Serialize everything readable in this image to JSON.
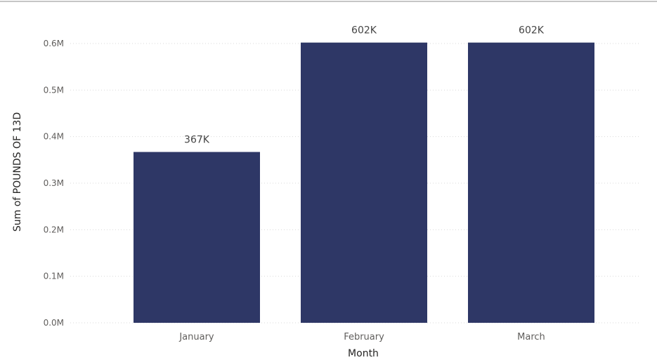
{
  "chart_data": {
    "type": "bar",
    "categories": [
      "January",
      "February",
      "March"
    ],
    "values": [
      367000,
      602000,
      602000
    ],
    "data_labels": [
      "367K",
      "602K",
      "602K"
    ],
    "title": "",
    "xlabel": "Month",
    "ylabel": "Sum of POUNDS OF 13D",
    "ylim": [
      0,
      600000
    ],
    "yticks": [
      0,
      100000,
      200000,
      300000,
      400000,
      500000,
      600000
    ],
    "ytick_labels": [
      "0.0M",
      "0.1M",
      "0.2M",
      "0.3M",
      "0.4M",
      "0.5M",
      "0.6M"
    ],
    "grid": true,
    "legend": "none",
    "bar_color": "#2e3766",
    "gridline_color": "#d9d9d9",
    "top_border_color": "#b3b3b3"
  }
}
